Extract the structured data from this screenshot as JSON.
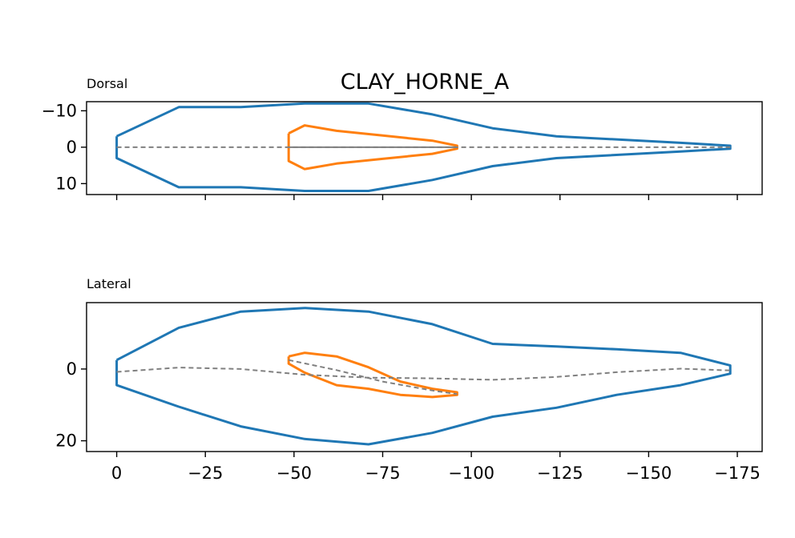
{
  "title": "CLAY_HORNE_A",
  "colors": {
    "outline": "#1f77b4",
    "inner": "#ff7f0e",
    "midline": "#808080"
  },
  "chart_data": [
    {
      "type": "line",
      "panel_label": "Dorsal",
      "x_axis": {
        "inverted": true,
        "ticks": [
          0,
          -25,
          -50,
          -75,
          -100,
          -125,
          -150,
          -175
        ],
        "tick_labels": [
          "0",
          "−25",
          "−50",
          "−75",
          "−100",
          "−125",
          "−150",
          "−175"
        ],
        "tick_labels_visible": false
      },
      "y_axis": {
        "inverted": true,
        "ylim": [
          -12.5,
          13
        ],
        "ticks": [
          -10,
          0,
          10
        ],
        "tick_labels": [
          "−10",
          "0",
          "10"
        ]
      },
      "xlim": [
        8.5,
        -182
      ],
      "series": [
        {
          "role": "outline",
          "color": "#1f77b4",
          "style": "solid",
          "points": [
            [
              0,
              -3
            ],
            [
              -17.5,
              -11
            ],
            [
              -35,
              -11
            ],
            [
              -53,
              -12
            ],
            [
              -71,
              -12
            ],
            [
              -89,
              -9
            ],
            [
              -106,
              -5.2
            ],
            [
              -124,
              -3
            ],
            [
              -159,
              -1.2
            ],
            [
              -173,
              -0.4
            ],
            [
              -173,
              0.4
            ],
            [
              -159,
              1.2
            ],
            [
              -124,
              3
            ],
            [
              -106,
              5.2
            ],
            [
              -89,
              9
            ],
            [
              -71,
              12
            ],
            [
              -53,
              12
            ],
            [
              -35,
              11
            ],
            [
              -17.5,
              11
            ],
            [
              0,
              3
            ],
            [
              0,
              -3
            ]
          ]
        },
        {
          "role": "inner",
          "color": "#ff7f0e",
          "style": "solid",
          "points": [
            [
              -48.5,
              -3.8
            ],
            [
              -53,
              -6
            ],
            [
              -62,
              -4.5
            ],
            [
              -75,
              -3.2
            ],
            [
              -89,
              -1.8
            ],
            [
              -96,
              -0.4
            ],
            [
              -96,
              0.4
            ],
            [
              -89,
              1.8
            ],
            [
              -75,
              3.2
            ],
            [
              -62,
              4.5
            ],
            [
              -53,
              6
            ],
            [
              -48.5,
              3.8
            ],
            [
              -48.5,
              -3.8
            ]
          ]
        },
        {
          "role": "midline",
          "color": "#808080",
          "style": "dashed",
          "points": [
            [
              0,
              0
            ],
            [
              -173,
              0
            ]
          ]
        },
        {
          "role": "midline",
          "color": "#808080",
          "style": "solid",
          "points": [
            [
              -48.5,
              0
            ],
            [
              -96,
              0
            ]
          ]
        }
      ]
    },
    {
      "type": "line",
      "panel_label": "Lateral",
      "x_axis": {
        "inverted": true,
        "ticks": [
          0,
          -25,
          -50,
          -75,
          -100,
          -125,
          -150,
          -175
        ],
        "tick_labels": [
          "0",
          "−25",
          "−50",
          "−75",
          "−100",
          "−125",
          "−150",
          "−175"
        ],
        "tick_labels_visible": true
      },
      "y_axis": {
        "inverted": true,
        "ylim": [
          -18.5,
          23
        ],
        "ticks": [
          0,
          20
        ],
        "tick_labels": [
          "0",
          "20"
        ]
      },
      "xlim": [
        8.5,
        -182
      ],
      "series": [
        {
          "role": "outline",
          "color": "#1f77b4",
          "style": "solid",
          "points": [
            [
              0,
              -2.5
            ],
            [
              -17.5,
              -11.5
            ],
            [
              -35,
              -16
            ],
            [
              -53,
              -17
            ],
            [
              -71,
              -16
            ],
            [
              -89,
              -12.5
            ],
            [
              -106,
              -7
            ],
            [
              -124,
              -6.3
            ],
            [
              -141,
              -5.5
            ],
            [
              -159,
              -4.5
            ],
            [
              -173,
              -1
            ],
            [
              -173,
              1.3
            ],
            [
              -159,
              4.5
            ],
            [
              -141,
              7.2
            ],
            [
              -124,
              10.8
            ],
            [
              -106,
              13.3
            ],
            [
              -89,
              17.8
            ],
            [
              -71,
              21
            ],
            [
              -53,
              19.5
            ],
            [
              -35,
              16
            ],
            [
              -17.5,
              10.5
            ],
            [
              0,
              4.5
            ],
            [
              0,
              -2.5
            ]
          ]
        },
        {
          "role": "inner",
          "color": "#ff7f0e",
          "style": "solid",
          "points": [
            [
              -48.5,
              -3.5
            ],
            [
              -53,
              -4.5
            ],
            [
              -62,
              -3.5
            ],
            [
              -71,
              -0.5
            ],
            [
              -80,
              3.5
            ],
            [
              -89,
              5.5
            ],
            [
              -96,
              6.5
            ],
            [
              -96,
              7.2
            ],
            [
              -89,
              7.8
            ],
            [
              -80,
              7.2
            ],
            [
              -71,
              5.5
            ],
            [
              -62,
              4.5
            ],
            [
              -53,
              1
            ],
            [
              -48.5,
              -1.5
            ],
            [
              -48.5,
              -3.5
            ]
          ]
        },
        {
          "role": "midline",
          "color": "#808080",
          "style": "dashed",
          "points": [
            [
              0,
              0.8
            ],
            [
              -17.5,
              -0.4
            ],
            [
              -35,
              0
            ],
            [
              -53,
              1.6
            ],
            [
              -71,
              2.4
            ],
            [
              -89,
              2.6
            ],
            [
              -106,
              3
            ],
            [
              -124,
              2.2
            ],
            [
              -141,
              0.9
            ],
            [
              -159,
              -0.1
            ],
            [
              -173,
              0.4
            ]
          ]
        },
        {
          "role": "midline",
          "color": "#808080",
          "style": "dashed",
          "points": [
            [
              -48.5,
              -2.5
            ],
            [
              -62,
              0.3
            ],
            [
              -75,
              3.5
            ],
            [
              -89,
              6
            ],
            [
              -96,
              7
            ]
          ]
        }
      ]
    }
  ]
}
